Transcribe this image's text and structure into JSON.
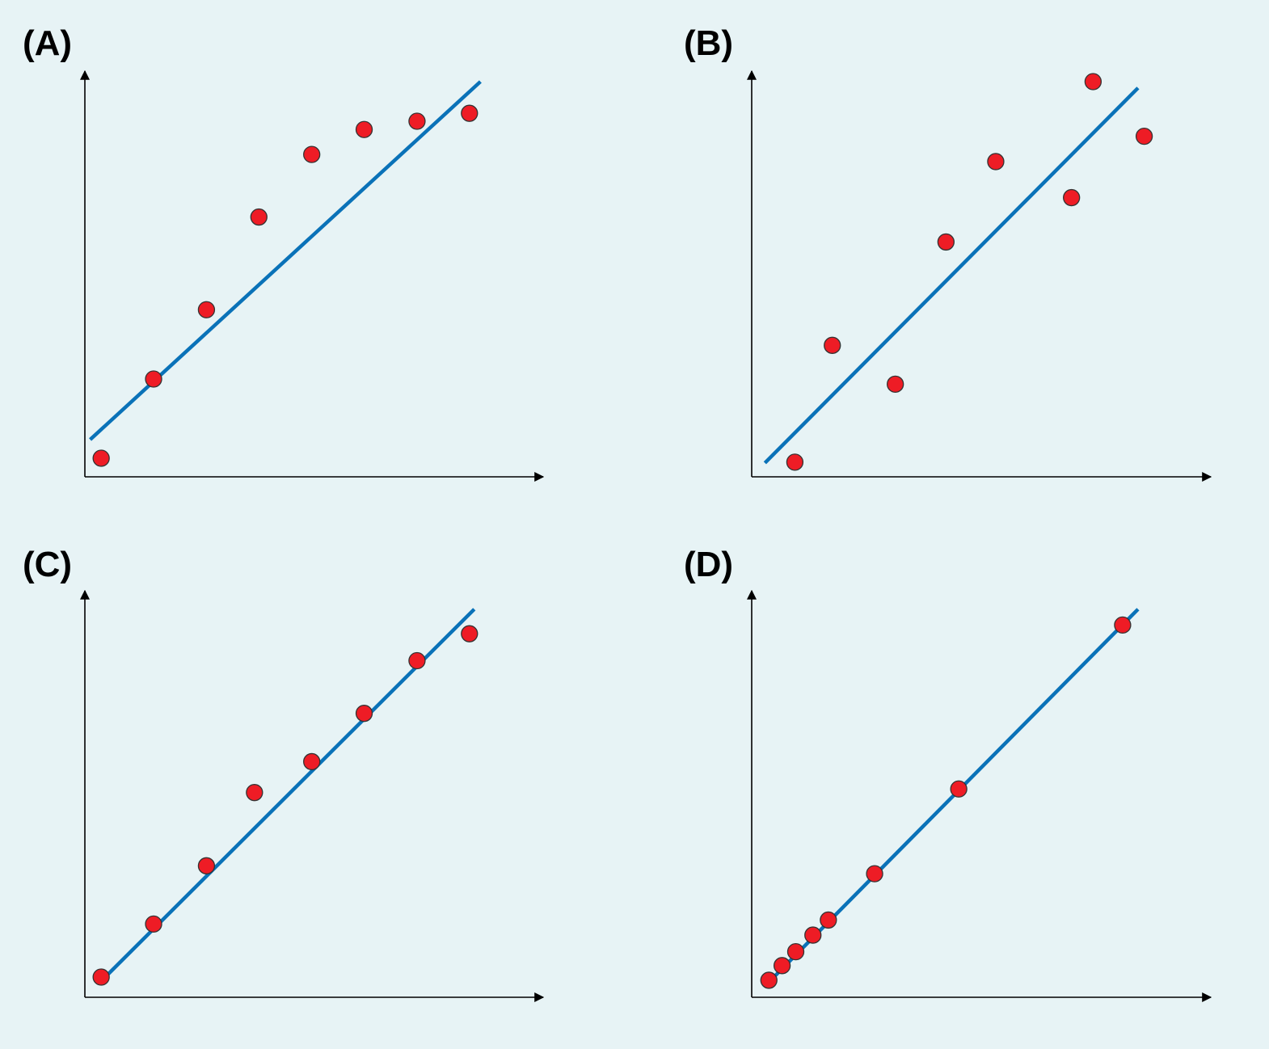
{
  "colors": {
    "background": "#e7f3f5",
    "fit_line": "#0a72b8",
    "points": "#ee1c25",
    "axes": "#000000"
  },
  "chart_data": [
    {
      "panel": "(A)",
      "type": "scatter",
      "xlim": [
        0,
        100
      ],
      "ylim": [
        0,
        100
      ],
      "points": [
        {
          "x": 3.7,
          "y": 4.7
        },
        {
          "x": 15.6,
          "y": 24.7
        },
        {
          "x": 27.6,
          "y": 42.2
        },
        {
          "x": 39.5,
          "y": 65.6
        },
        {
          "x": 51.5,
          "y": 81.4
        },
        {
          "x": 63.4,
          "y": 87.7
        },
        {
          "x": 75.4,
          "y": 89.8
        },
        {
          "x": 87.3,
          "y": 91.8
        }
      ],
      "fit_line": [
        {
          "x": 1.2,
          "y": 9.4
        },
        {
          "x": 89.8,
          "y": 99.8
        }
      ]
    },
    {
      "panel": "(B)",
      "type": "scatter",
      "xlim": [
        0,
        100
      ],
      "ylim": [
        0,
        100
      ],
      "points": [
        {
          "x": 9.8,
          "y": 3.7
        },
        {
          "x": 18.3,
          "y": 33.2
        },
        {
          "x": 32.6,
          "y": 23.4
        },
        {
          "x": 44.1,
          "y": 59.3
        },
        {
          "x": 55.4,
          "y": 79.6
        },
        {
          "x": 72.6,
          "y": 70.5
        },
        {
          "x": 77.5,
          "y": 99.8
        },
        {
          "x": 89.1,
          "y": 86.0
        }
      ],
      "fit_line": [
        {
          "x": 3.0,
          "y": 3.5
        },
        {
          "x": 87.7,
          "y": 98.2
        }
      ]
    },
    {
      "panel": "(C)",
      "type": "scatter",
      "xlim": [
        0,
        100
      ],
      "ylim": [
        0,
        100
      ],
      "points": [
        {
          "x": 3.7,
          "y": 5.1
        },
        {
          "x": 15.6,
          "y": 18.5
        },
        {
          "x": 27.6,
          "y": 33.2
        },
        {
          "x": 38.5,
          "y": 51.7
        },
        {
          "x": 51.5,
          "y": 59.5
        },
        {
          "x": 63.4,
          "y": 71.7
        },
        {
          "x": 75.4,
          "y": 85.0
        },
        {
          "x": 87.3,
          "y": 91.8
        }
      ],
      "fit_line": [
        {
          "x": 4.8,
          "y": 5.3
        },
        {
          "x": 88.4,
          "y": 98.0
        }
      ]
    },
    {
      "panel": "(D)",
      "type": "scatter",
      "xlim": [
        0,
        100
      ],
      "ylim": [
        0,
        100
      ],
      "points": [
        {
          "x": 3.9,
          "y": 4.3
        },
        {
          "x": 6.9,
          "y": 8.0
        },
        {
          "x": 10.0,
          "y": 11.5
        },
        {
          "x": 13.9,
          "y": 15.7
        },
        {
          "x": 17.4,
          "y": 19.5
        },
        {
          "x": 27.9,
          "y": 31.2
        },
        {
          "x": 47.0,
          "y": 52.6
        },
        {
          "x": 84.2,
          "y": 94.0
        }
      ],
      "fit_line": [
        {
          "x": 4.5,
          "y": 4.5
        },
        {
          "x": 87.7,
          "y": 98.0
        }
      ]
    }
  ]
}
